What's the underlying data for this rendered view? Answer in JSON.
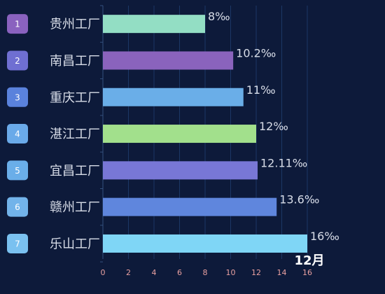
{
  "chart_data": {
    "type": "bar",
    "orientation": "horizontal",
    "categories": [
      "贵州工厂",
      "南昌工厂",
      "重庆工厂",
      "湛江工厂",
      "宜昌工厂",
      "赣州工厂",
      "乐山工厂"
    ],
    "ranks": [
      "1",
      "2",
      "3",
      "4",
      "5",
      "6",
      "7"
    ],
    "values": [
      8,
      10.2,
      11,
      12,
      12.11,
      13.6,
      16
    ],
    "value_labels": [
      "8‰",
      "10.2‰",
      "11‰",
      "12‰",
      "12.11‰",
      "13.6‰",
      "16‰"
    ],
    "xticks": [
      "0",
      "2",
      "4",
      "6",
      "8",
      "10",
      "12",
      "14",
      "16"
    ],
    "xlim": [
      0,
      16
    ],
    "xlabel": "12月",
    "grid": true,
    "colors": {
      "bars": [
        "#93dec4",
        "#8a63bd",
        "#6aaee8",
        "#a2e08c",
        "#7877d6",
        "#5f86dd",
        "#7fd6f6"
      ],
      "rank_badges": [
        "#8a62bf",
        "#6f6fd2",
        "#5a82dc",
        "#6aaae9",
        "#6aaee9",
        "#72b3ea",
        "#7ac1f0"
      ],
      "background": "#0d1a3a"
    }
  }
}
